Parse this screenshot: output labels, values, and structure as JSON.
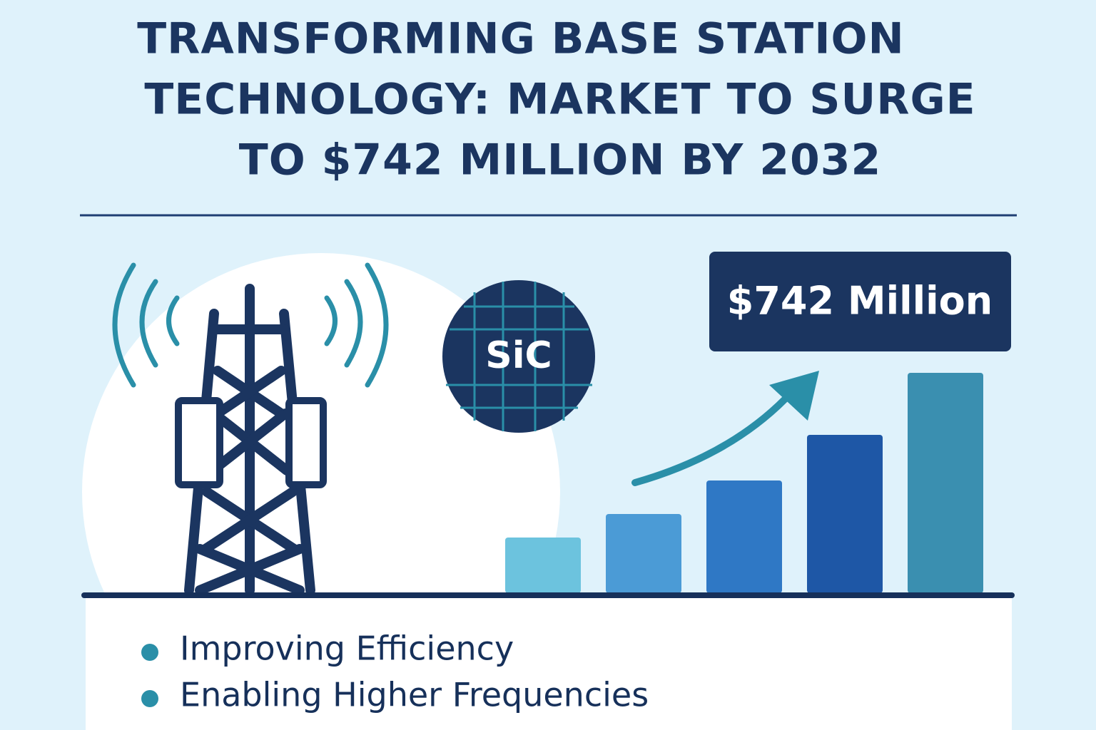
{
  "header": {
    "title_lines": [
      "TRANSFORMING BASE STATION",
      "TECHNOLOGY: MARKET TO SURGE",
      "TO $742 MILLION BY 2032"
    ]
  },
  "badge": {
    "label": "SiC"
  },
  "callout": {
    "label": "$742 Million"
  },
  "bullets": [
    "Improving Efficiency",
    "Enabling Higher Frequencies"
  ]
}
